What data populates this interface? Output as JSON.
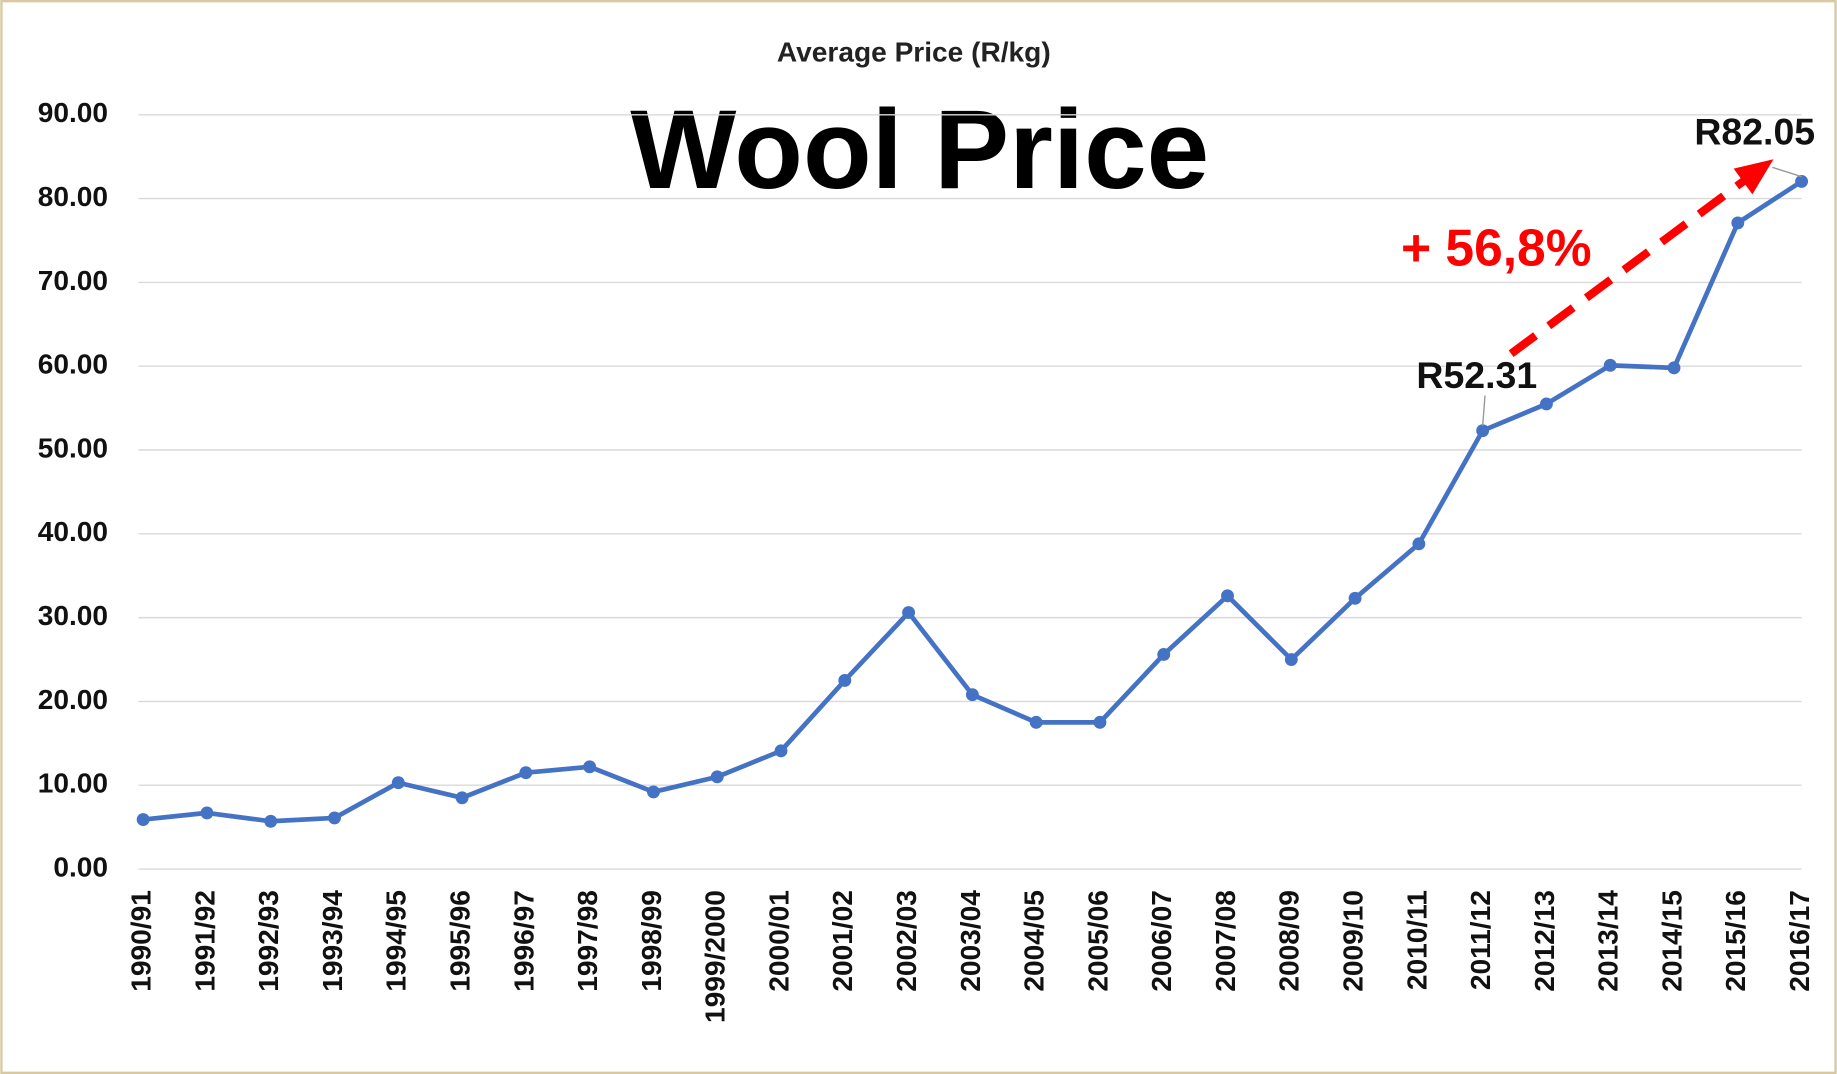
{
  "chart_data": {
    "type": "line",
    "title": "Wool Price",
    "subtitle": "Average Price (R/kg)",
    "annotation": "+ 56,8%",
    "categories": [
      "1990/91",
      "1991/92",
      "1992/93",
      "1993/94",
      "1994/95",
      "1995/96",
      "1996/97",
      "1997/98",
      "1998/99",
      "1999/2000",
      "2000/01",
      "2001/02",
      "2002/03",
      "2003/04",
      "2004/05",
      "2005/06",
      "2006/07",
      "2007/08",
      "2008/09",
      "2009/10",
      "2010/11",
      "2011/12",
      "2012/13",
      "2013/14",
      "2014/15",
      "2015/16",
      "2016/17"
    ],
    "series": [
      {
        "name": "Average Price (R/kg)",
        "color": "#4472c4",
        "values": [
          5.9,
          6.7,
          5.7,
          6.1,
          10.3,
          8.5,
          11.5,
          12.2,
          9.2,
          11.0,
          14.1,
          22.5,
          30.6,
          20.8,
          17.5,
          17.5,
          25.6,
          32.6,
          25.0,
          32.3,
          38.8,
          52.31,
          55.5,
          60.1,
          59.8,
          77.1,
          82.05
        ],
        "value_labels": [
          null,
          null,
          null,
          null,
          null,
          null,
          null,
          null,
          null,
          null,
          null,
          null,
          null,
          null,
          null,
          null,
          null,
          null,
          null,
          null,
          null,
          "R52.31",
          null,
          null,
          null,
          null,
          "R82.05"
        ]
      }
    ],
    "ylim": [
      0,
      90
    ],
    "yticks": [
      {
        "value": 0,
        "label": "0.00"
      },
      {
        "value": 10,
        "label": "10.00"
      },
      {
        "value": 20,
        "label": "20.00"
      },
      {
        "value": 30,
        "label": "30.00"
      },
      {
        "value": 40,
        "label": "40.00"
      },
      {
        "value": 50,
        "label": "50.00"
      },
      {
        "value": 60,
        "label": "60.00"
      },
      {
        "value": 70,
        "label": "70.00"
      },
      {
        "value": 80,
        "label": "80.00"
      },
      {
        "value": 90,
        "label": "90.00"
      }
    ],
    "grid": true,
    "annotation_color": "#ff0000"
  }
}
